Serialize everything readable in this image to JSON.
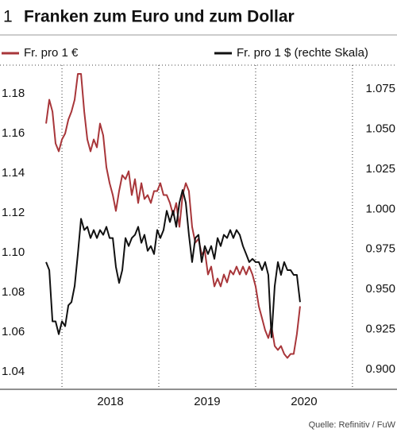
{
  "chart_data": {
    "type": "line",
    "figure_number": "1",
    "title": "Franken zum Euro und zum Dollar",
    "source": "Quelle: Refinitiv / FuW",
    "x": [
      2017.836,
      2017.869,
      2017.902,
      2017.934,
      2017.967,
      2018.0,
      2018.033,
      2018.066,
      2018.098,
      2018.131,
      2018.164,
      2018.197,
      2018.23,
      2018.262,
      2018.295,
      2018.328,
      2018.361,
      2018.393,
      2018.426,
      2018.459,
      2018.492,
      2018.525,
      2018.557,
      2018.59,
      2018.623,
      2018.656,
      2018.689,
      2018.721,
      2018.754,
      2018.787,
      2018.82,
      2018.852,
      2018.885,
      2018.918,
      2018.951,
      2018.984,
      2019.016,
      2019.049,
      2019.082,
      2019.115,
      2019.148,
      2019.18,
      2019.213,
      2019.246,
      2019.279,
      2019.311,
      2019.344,
      2019.377,
      2019.41,
      2019.443,
      2019.475,
      2019.508,
      2019.541,
      2019.574,
      2019.607,
      2019.639,
      2019.672,
      2019.705,
      2019.738,
      2019.77,
      2019.803,
      2019.836,
      2019.869,
      2019.902,
      2019.934,
      2019.967,
      2020.0,
      2020.033,
      2020.066,
      2020.098,
      2020.131,
      2020.164,
      2020.197,
      2020.23,
      2020.262,
      2020.295,
      2020.328,
      2020.361,
      2020.393,
      2020.426,
      2020.459
    ],
    "series": [
      {
        "name": "Fr. pro 1 €",
        "color": "#a8363a",
        "axis": "y",
        "values": [
          1.165,
          1.177,
          1.171,
          1.155,
          1.151,
          1.157,
          1.16,
          1.167,
          1.171,
          1.177,
          1.19,
          1.19,
          1.171,
          1.157,
          1.151,
          1.157,
          1.153,
          1.165,
          1.159,
          1.143,
          1.135,
          1.129,
          1.121,
          1.131,
          1.139,
          1.137,
          1.141,
          1.129,
          1.137,
          1.125,
          1.135,
          1.127,
          1.129,
          1.125,
          1.131,
          1.131,
          1.135,
          1.129,
          1.129,
          1.125,
          1.119,
          1.125,
          1.113,
          1.129,
          1.135,
          1.131,
          1.113,
          1.105,
          1.107,
          1.099,
          1.101,
          1.089,
          1.093,
          1.083,
          1.087,
          1.083,
          1.089,
          1.085,
          1.091,
          1.089,
          1.093,
          1.089,
          1.093,
          1.089,
          1.093,
          1.089,
          1.083,
          1.073,
          1.067,
          1.061,
          1.057,
          1.063,
          1.053,
          1.051,
          1.053,
          1.049,
          1.047,
          1.049,
          1.049,
          1.059,
          1.073
        ]
      },
      {
        "name": "Fr. pro 1 $ (rechte Skala)",
        "color": "#111111",
        "axis": "y2",
        "values": [
          0.967,
          0.962,
          0.93,
          0.93,
          0.922,
          0.93,
          0.927,
          0.94,
          0.942,
          0.952,
          0.972,
          0.994,
          0.987,
          0.989,
          0.982,
          0.987,
          0.982,
          0.987,
          0.984,
          0.989,
          0.982,
          0.982,
          0.964,
          0.954,
          0.962,
          0.982,
          0.977,
          0.982,
          0.984,
          0.989,
          0.979,
          0.984,
          0.974,
          0.977,
          0.972,
          0.987,
          0.982,
          0.987,
          0.999,
          0.992,
          0.999,
          0.989,
          1.004,
          1.012,
          1.004,
          0.984,
          0.967,
          0.982,
          0.984,
          0.967,
          0.977,
          0.972,
          0.977,
          0.969,
          0.982,
          0.977,
          0.984,
          0.982,
          0.987,
          0.982,
          0.987,
          0.984,
          0.977,
          0.972,
          0.967,
          0.969,
          0.967,
          0.967,
          0.962,
          0.967,
          0.959,
          0.92,
          0.952,
          0.967,
          0.959,
          0.967,
          0.962,
          0.962,
          0.959,
          0.959,
          0.942
        ]
      }
    ],
    "xlim": [
      2017.36,
      2021.46
    ],
    "xticks": [
      {
        "value": 2018.5,
        "label": "2018"
      },
      {
        "value": 2019.5,
        "label": "2019"
      },
      {
        "value": 2020.5,
        "label": "2020"
      }
    ],
    "xgrid": [
      2018,
      2019,
      2020,
      2021
    ],
    "ylim": [
      1.0312,
      1.1932
    ],
    "yticks": [
      1.04,
      1.06,
      1.08,
      {
        "value": 1.1,
        "label": "1.10"
      },
      1.12,
      1.14,
      1.16,
      1.18
    ],
    "y2lim": [
      0.8876,
      1.0884
    ],
    "y2ticks": [
      {
        "value": 0.9,
        "label": "0.900"
      },
      0.925,
      {
        "value": 0.95,
        "label": "0.950"
      },
      0.975,
      {
        "value": 1,
        "label": "1.000"
      },
      1.025,
      {
        "value": 1.05,
        "label": "1.050"
      },
      1.075
    ]
  }
}
